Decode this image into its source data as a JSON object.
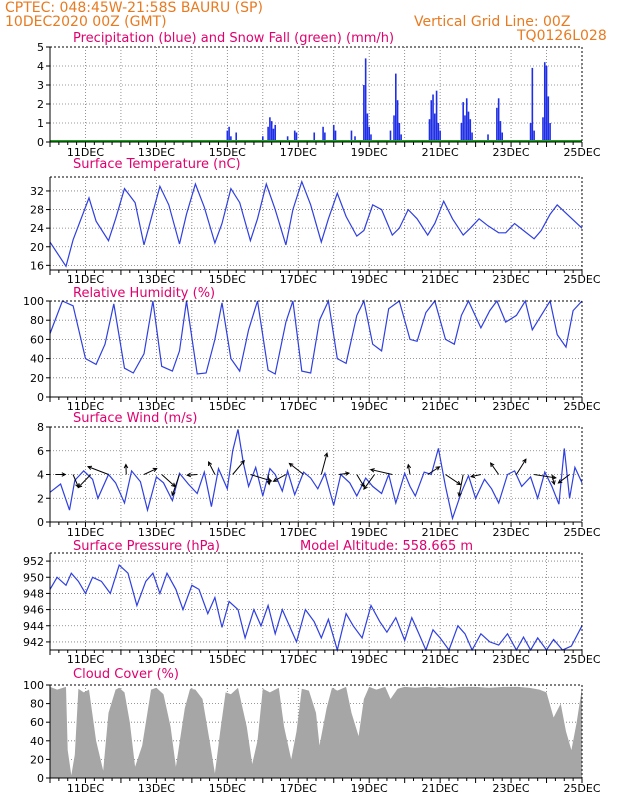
{
  "header": {
    "line1_left": "CPTEC:   048:45W-21:58S   BAURU (SP)",
    "line2_left": "10DEC2020 00Z (GMT)",
    "line1_right": "Vertical Grid Line: 00Z",
    "line2_right": "TQ0126L028"
  },
  "colors": {
    "header_text": "#e87a20",
    "panel_title": "#e0006e",
    "precip": "#1f2ee6",
    "snow": "#1aa31a",
    "line": "#2f3fe0",
    "arrow": "#000000",
    "cloud_fill": "#a6a6a6"
  },
  "x_ticks": [
    "11DEC",
    "13DEC",
    "15DEC",
    "17DEC",
    "19DEC",
    "21DEC",
    "23DEC",
    "25DEC"
  ],
  "chart_data": [
    {
      "type": "bar",
      "title": "Precipitation (blue) and Snow Fall (green) (mm/h)",
      "ylim": [
        0,
        5
      ],
      "yticks": [
        0,
        1,
        2,
        3,
        4,
        5
      ],
      "series": [
        {
          "name": "Precipitation",
          "points": [
            [
              5.0,
              0.6
            ],
            [
              5.05,
              0.8
            ],
            [
              5.1,
              0.3
            ],
            [
              5.25,
              0.5
            ],
            [
              6.0,
              0.3
            ],
            [
              6.15,
              0.8
            ],
            [
              6.2,
              1.3
            ],
            [
              6.25,
              1.1
            ],
            [
              6.3,
              0.7
            ],
            [
              6.35,
              0.9
            ],
            [
              6.7,
              0.3
            ],
            [
              6.9,
              0.6
            ],
            [
              6.95,
              0.5
            ],
            [
              7.45,
              0.5
            ],
            [
              7.7,
              0.8
            ],
            [
              7.75,
              0.5
            ],
            [
              8.0,
              0.9
            ],
            [
              8.05,
              0.6
            ],
            [
              8.5,
              0.6
            ],
            [
              8.6,
              0.3
            ],
            [
              8.85,
              3.0
            ],
            [
              8.9,
              4.4
            ],
            [
              8.95,
              1.5
            ],
            [
              9.0,
              0.8
            ],
            [
              9.05,
              0.4
            ],
            [
              9.6,
              0.6
            ],
            [
              9.7,
              1.4
            ],
            [
              9.75,
              3.6
            ],
            [
              9.8,
              2.2
            ],
            [
              9.85,
              1.0
            ],
            [
              9.9,
              0.4
            ],
            [
              10.7,
              1.2
            ],
            [
              10.75,
              2.2
            ],
            [
              10.8,
              2.5
            ],
            [
              10.85,
              1.5
            ],
            [
              10.9,
              2.7
            ],
            [
              10.95,
              1.0
            ],
            [
              11.0,
              0.6
            ],
            [
              11.6,
              1.0
            ],
            [
              11.65,
              2.1
            ],
            [
              11.7,
              1.4
            ],
            [
              11.75,
              2.3
            ],
            [
              11.8,
              1.6
            ],
            [
              11.85,
              1.2
            ],
            [
              11.9,
              0.5
            ],
            [
              12.35,
              0.4
            ],
            [
              12.6,
              1.8
            ],
            [
              12.65,
              2.3
            ],
            [
              12.7,
              1.1
            ],
            [
              12.75,
              0.5
            ],
            [
              13.55,
              1.0
            ],
            [
              13.6,
              3.9
            ],
            [
              13.65,
              0.6
            ],
            [
              13.9,
              1.3
            ],
            [
              13.95,
              4.2
            ],
            [
              14.0,
              4.0
            ],
            [
              14.05,
              2.4
            ],
            [
              14.1,
              1.0
            ]
          ]
        },
        {
          "name": "Snow Fall",
          "points": []
        }
      ]
    },
    {
      "type": "line",
      "title": "Surface Temperature (nC)",
      "ylim": [
        15,
        35
      ],
      "yticks": [
        16,
        20,
        24,
        28,
        32
      ],
      "x": [
        0.0,
        0.45,
        0.65,
        1.1,
        1.3,
        1.65,
        1.85,
        2.1,
        2.4,
        2.65,
        2.85,
        3.1,
        3.35,
        3.65,
        3.85,
        4.1,
        4.35,
        4.65,
        4.85,
        5.1,
        5.35,
        5.65,
        5.85,
        6.1,
        6.35,
        6.65,
        6.85,
        7.1,
        7.35,
        7.65,
        7.85,
        8.1,
        8.35,
        8.65,
        8.85,
        9.1,
        9.35,
        9.65,
        9.85,
        10.1,
        10.35,
        10.65,
        10.85,
        11.1,
        11.35,
        11.65,
        11.85,
        12.1,
        12.35,
        12.65,
        12.85,
        13.1,
        13.35,
        13.65,
        13.85,
        14.1,
        14.3,
        15.0
      ],
      "y": [
        21.0,
        15.8,
        21.5,
        30.5,
        25.5,
        21.3,
        26.0,
        32.5,
        29.5,
        20.4,
        26.0,
        33.0,
        29.0,
        20.6,
        27.0,
        33.5,
        28.5,
        20.8,
        25.0,
        32.5,
        29.5,
        21.3,
        26.0,
        33.5,
        28.0,
        20.4,
        28.0,
        34.0,
        29.0,
        21.0,
        26.0,
        31.5,
        26.5,
        22.3,
        23.5,
        29.0,
        28.0,
        22.5,
        24.0,
        28.0,
        26.0,
        22.5,
        25.0,
        29.8,
        26.0,
        22.5,
        24.0,
        26.0,
        24.5,
        23.0,
        23.0,
        25.0,
        23.5,
        21.7,
        23.5,
        27.0,
        29.0,
        24.0
      ]
    },
    {
      "type": "line",
      "title": "Relative Humidity (%)",
      "ylim": [
        0,
        100
      ],
      "yticks": [
        0,
        20,
        40,
        60,
        80,
        100
      ],
      "x": [
        0.0,
        0.35,
        0.65,
        1.0,
        1.3,
        1.55,
        1.8,
        2.1,
        2.35,
        2.65,
        2.9,
        3.15,
        3.45,
        3.65,
        3.85,
        4.15,
        4.4,
        4.65,
        4.85,
        5.1,
        5.35,
        5.6,
        5.85,
        6.15,
        6.35,
        6.65,
        6.85,
        7.1,
        7.35,
        7.6,
        7.85,
        8.1,
        8.35,
        8.65,
        8.85,
        9.1,
        9.35,
        9.55,
        9.85,
        10.15,
        10.35,
        10.6,
        10.85,
        11.15,
        11.4,
        11.6,
        11.8,
        12.15,
        12.4,
        12.6,
        12.85,
        13.15,
        13.4,
        13.6,
        13.85,
        14.1,
        14.3,
        14.55,
        14.75,
        15.0
      ],
      "y": [
        66,
        100,
        95,
        40,
        34,
        55,
        97,
        30,
        25,
        45,
        100,
        32,
        27,
        48,
        100,
        24,
        25,
        60,
        98,
        40,
        27,
        70,
        100,
        28,
        24,
        78,
        100,
        27,
        25,
        80,
        100,
        40,
        35,
        85,
        100,
        55,
        48,
        92,
        100,
        60,
        58,
        88,
        100,
        60,
        55,
        85,
        100,
        72,
        90,
        100,
        78,
        85,
        100,
        70,
        85,
        100,
        65,
        52,
        90,
        100
      ]
    },
    {
      "type": "line",
      "title": "Surface Wind (m/s)",
      "ylim": [
        0,
        8
      ],
      "yticks": [
        0,
        2,
        4,
        6,
        8
      ],
      "x": [
        0.0,
        0.3,
        0.55,
        0.7,
        0.95,
        1.2,
        1.35,
        1.65,
        1.85,
        2.1,
        2.3,
        2.55,
        2.75,
        3.0,
        3.2,
        3.45,
        3.65,
        3.9,
        4.15,
        4.35,
        4.55,
        4.75,
        5.0,
        5.15,
        5.3,
        5.45,
        5.6,
        5.8,
        6.0,
        6.2,
        6.35,
        6.55,
        6.7,
        6.9,
        7.15,
        7.35,
        7.55,
        7.75,
        8.0,
        8.2,
        8.45,
        8.65,
        8.9,
        9.1,
        9.35,
        9.55,
        9.75,
        10.0,
        10.15,
        10.3,
        10.55,
        10.75,
        10.95,
        11.15,
        11.35,
        11.6,
        11.8,
        12.0,
        12.25,
        12.45,
        12.65,
        12.9,
        13.1,
        13.3,
        13.55,
        13.75,
        13.95,
        14.15,
        14.35,
        14.5,
        14.65,
        14.8,
        15.0
      ],
      "y": [
        2.5,
        3.2,
        1.0,
        3.5,
        4.3,
        3.6,
        2.0,
        4.0,
        3.3,
        1.6,
        4.3,
        3.4,
        1.0,
        3.8,
        3.3,
        1.8,
        4.1,
        3.2,
        2.4,
        4.2,
        1.3,
        4.5,
        2.8,
        6.0,
        7.8,
        5.0,
        3.0,
        4.6,
        2.2,
        4.5,
        4.0,
        2.6,
        4.3,
        2.3,
        4.2,
        3.7,
        2.8,
        4.1,
        1.4,
        4.0,
        3.3,
        2.2,
        3.7,
        3.0,
        2.4,
        4.0,
        1.6,
        4.1,
        3.0,
        2.2,
        4.2,
        4.0,
        6.2,
        3.0,
        0.3,
        2.5,
        3.9,
        2.0,
        3.6,
        2.8,
        1.6,
        4.0,
        4.3,
        3.0,
        3.8,
        2.0,
        4.2,
        3.0,
        1.5,
        6.2,
        2.0,
        4.6,
        3.3
      ]
    },
    {
      "type": "line",
      "title": "Surface Pressure (hPa)",
      "annotation": "Model Altitude: 558.665 m",
      "ylim": [
        941,
        953
      ],
      "yticks": [
        942,
        944,
        946,
        948,
        950,
        952
      ],
      "x": [
        0.0,
        0.2,
        0.45,
        0.6,
        0.8,
        1.0,
        1.2,
        1.45,
        1.7,
        1.95,
        2.2,
        2.45,
        2.7,
        2.9,
        3.1,
        3.3,
        3.55,
        3.75,
        4.0,
        4.2,
        4.45,
        4.65,
        4.85,
        5.05,
        5.3,
        5.5,
        5.75,
        5.95,
        6.15,
        6.35,
        6.55,
        6.75,
        6.95,
        7.2,
        7.45,
        7.65,
        7.85,
        8.1,
        8.35,
        8.55,
        8.8,
        9.05,
        9.3,
        9.5,
        9.75,
        10.0,
        10.2,
        10.4,
        10.6,
        10.8,
        11.0,
        11.25,
        11.5,
        11.7,
        11.9,
        12.15,
        12.4,
        12.65,
        12.9,
        13.15,
        13.35,
        13.55,
        13.75,
        14.0,
        14.2,
        14.45,
        14.7,
        15.0
      ],
      "y": [
        948.5,
        950.0,
        949.0,
        950.5,
        949.5,
        948.0,
        950.0,
        949.5,
        948.0,
        951.5,
        950.5,
        946.5,
        949.5,
        950.5,
        948.0,
        950.5,
        948.5,
        946.0,
        949.0,
        948.5,
        945.5,
        947.5,
        943.8,
        947.0,
        946.0,
        942.5,
        946.0,
        944.0,
        946.5,
        943.0,
        946.0,
        944.0,
        942.0,
        946.0,
        944.5,
        942.5,
        944.8,
        941.0,
        945.5,
        944.0,
        942.5,
        946.5,
        944.5,
        943.2,
        945.0,
        942.2,
        945.0,
        943.0,
        940.8,
        943.5,
        942.5,
        941.0,
        944.0,
        943.0,
        941.0,
        943.0,
        942.0,
        941.6,
        943.0,
        941.0,
        942.6,
        941.0,
        942.5,
        941.0,
        942.3,
        941.0,
        941.5,
        944.0
      ]
    },
    {
      "type": "area",
      "title": "Cloud Cover (%)",
      "ylim": [
        0,
        100
      ],
      "yticks": [
        0,
        20,
        40,
        60,
        80,
        100
      ],
      "x": [
        0.0,
        0.2,
        0.45,
        0.5,
        0.6,
        0.7,
        0.8,
        0.95,
        1.1,
        1.3,
        1.5,
        1.65,
        1.85,
        1.95,
        2.1,
        2.25,
        2.4,
        2.6,
        2.85,
        3.0,
        3.2,
        3.4,
        3.55,
        3.8,
        3.95,
        4.1,
        4.3,
        4.5,
        4.65,
        4.8,
        4.95,
        5.1,
        5.3,
        5.55,
        5.7,
        5.85,
        6.0,
        6.2,
        6.45,
        6.6,
        6.8,
        6.95,
        7.1,
        7.3,
        7.5,
        7.6,
        7.8,
        7.95,
        8.1,
        8.35,
        8.5,
        8.7,
        8.85,
        9.0,
        9.2,
        9.45,
        9.6,
        9.8,
        10.0,
        10.3,
        10.6,
        10.85,
        11.0,
        11.3,
        11.6,
        12.0,
        12.4,
        12.8,
        13.2,
        13.5,
        13.8,
        14.0,
        14.2,
        14.4,
        14.55,
        14.7,
        14.85,
        15.0
      ],
      "y": [
        98,
        95,
        98,
        30,
        3,
        25,
        96,
        92,
        95,
        40,
        8,
        70,
        95,
        97,
        92,
        60,
        12,
        35,
        95,
        97,
        90,
        55,
        12,
        75,
        96,
        95,
        85,
        40,
        5,
        50,
        92,
        90,
        97,
        55,
        15,
        40,
        96,
        92,
        97,
        55,
        20,
        50,
        96,
        94,
        70,
        35,
        75,
        97,
        94,
        98,
        70,
        45,
        85,
        98,
        95,
        98,
        85,
        96,
        98,
        97,
        98,
        97,
        98,
        97,
        98,
        98,
        97,
        98,
        98,
        97,
        95,
        92,
        65,
        80,
        50,
        30,
        60,
        97
      ]
    }
  ]
}
